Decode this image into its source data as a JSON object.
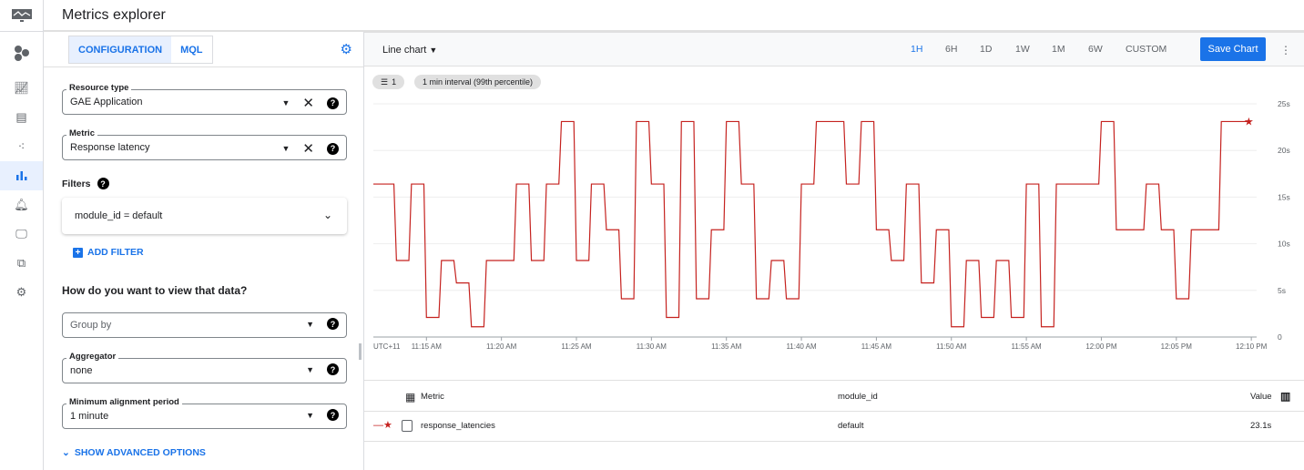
{
  "header": {
    "title": "Metrics explorer"
  },
  "rail": {
    "items": [
      "monitoring-logo",
      "products-icon",
      "dashboards-icon",
      "reports-icon",
      "services-icon",
      "metrics-explorer-icon",
      "alerting-icon",
      "uptime-icon",
      "groups-icon",
      "settings-icon"
    ],
    "active": "metrics-explorer-icon"
  },
  "config": {
    "tabs": [
      {
        "label": "CONFIGURATION",
        "active": true
      },
      {
        "label": "MQL",
        "active": false
      }
    ],
    "resource_type": {
      "label": "Resource type",
      "value": "GAE Application"
    },
    "metric": {
      "label": "Metric",
      "value": "Response latency"
    },
    "filters_label": "Filters",
    "filter": "module_id = default",
    "add_filter": "ADD FILTER",
    "view_question": "How do you want to view that data?",
    "group_by": {
      "placeholder": "Group by"
    },
    "aggregator": {
      "label": "Aggregator",
      "value": "none"
    },
    "alignment": {
      "label": "Minimum alignment period",
      "value": "1 minute"
    },
    "advanced": "SHOW ADVANCED OPTIONS"
  },
  "toolbar": {
    "chart_type": "Line chart",
    "ranges": [
      {
        "label": "1H",
        "active": true
      },
      {
        "label": "6H"
      },
      {
        "label": "1D"
      },
      {
        "label": "1W"
      },
      {
        "label": "1M"
      },
      {
        "label": "6W"
      },
      {
        "label": "CUSTOM"
      }
    ],
    "save": "Save Chart",
    "active_color": "#1a73e8"
  },
  "chips": {
    "filter_count": "1",
    "interval": "1 min interval (99th percentile)"
  },
  "chart_data": {
    "type": "line",
    "timezone_label": "UTC+11",
    "x_ticks": [
      "11:15 AM",
      "11:20 AM",
      "11:25 AM",
      "11:30 AM",
      "11:35 AM",
      "11:40 AM",
      "11:45 AM",
      "11:50 AM",
      "11:55 AM",
      "12:00 PM",
      "12:05 PM",
      "12:10 PM"
    ],
    "y_ticks": [
      "0",
      "5s",
      "10s",
      "15s",
      "20s",
      "25s"
    ],
    "ylim": [
      0,
      25
    ],
    "grid": true,
    "series": [
      {
        "color": "#c5221f",
        "start": "11:11",
        "interval_minutes": 1,
        "values": [
          16.4,
          16.4,
          8.2,
          16.4,
          2.1,
          8.2,
          5.8,
          1.1,
          8.2,
          8.2,
          16.4,
          8.2,
          16.4,
          23.1,
          8.2,
          16.4,
          11.5,
          4.1,
          23.1,
          16.4,
          2.1,
          23.1,
          4.1,
          11.5,
          23.1,
          16.4,
          4.1,
          8.2,
          4.1,
          16.4,
          23.1,
          23.1,
          16.4,
          23.1,
          11.5,
          8.2,
          16.4,
          5.8,
          11.5,
          1.1,
          8.2,
          2.1,
          8.2,
          2.1,
          16.4,
          1.1,
          16.4,
          16.4,
          16.4,
          23.1,
          11.5,
          11.5,
          16.4,
          11.5,
          4.1,
          11.5,
          11.5,
          23.1,
          23.1
        ]
      }
    ]
  },
  "table": {
    "headers": {
      "metric": "Metric",
      "module_id": "module_id",
      "value": "Value"
    },
    "rows": [
      {
        "metric": "response_latencies",
        "module_id": "default",
        "value": "23.1s"
      }
    ]
  }
}
